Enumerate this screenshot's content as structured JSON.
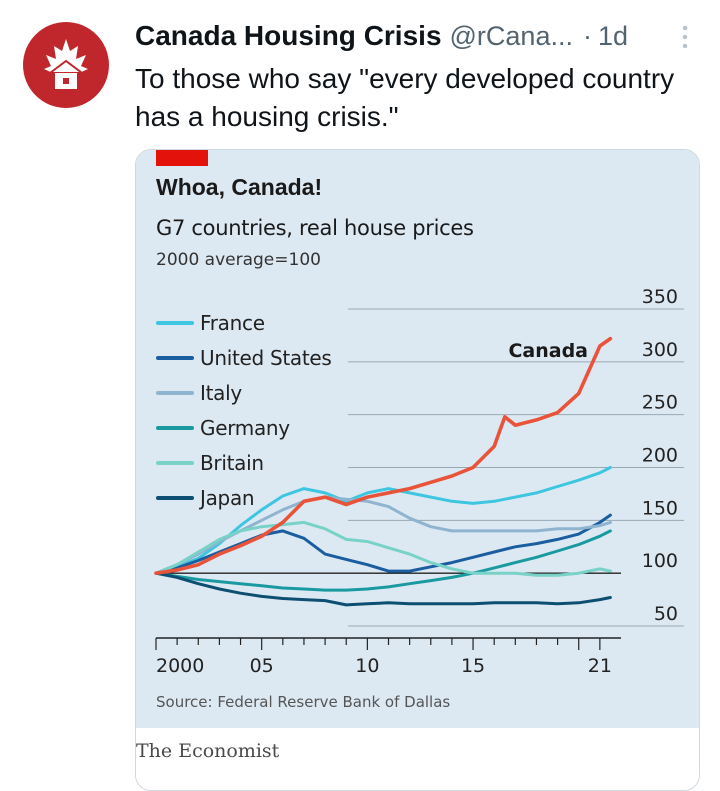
{
  "tweet": {
    "author_name": "Canada Housing Crisis",
    "handle": "@rCana...",
    "separator": "·",
    "time": "1d",
    "text": "To those who say \"every developed country has a housing crisis.\""
  },
  "colors": {
    "avatar_bg": "#c0272d",
    "canada": "#e8533a",
    "france": "#3ec6e0",
    "united_states": "#1a5ea0",
    "italy": "#8fb4d0",
    "germany": "#1a9aa0",
    "britain": "#78d2c8",
    "japan": "#0d4f72"
  },
  "card": {
    "publisher": "The Economist",
    "source": "Source: Federal Reserve Bank of Dallas"
  },
  "chart_data": {
    "type": "line",
    "title": "Whoa, Canada!",
    "subtitle": "G7 countries, real house prices",
    "note": "2000 average=100",
    "annotation": "Canada",
    "xlabel": "",
    "ylabel": "",
    "x_ticks": [
      "2000",
      "05",
      "10",
      "15",
      "21"
    ],
    "x_range": [
      2000,
      2022
    ],
    "y_ticks": [
      50,
      100,
      150,
      200,
      250,
      300,
      350
    ],
    "ylim": [
      50,
      350
    ],
    "series": [
      {
        "name": "Canada",
        "key": "canada",
        "legend": false,
        "x": [
          2000,
          2001,
          2002,
          2003,
          2004,
          2005,
          2006,
          2007,
          2008,
          2009,
          2010,
          2011,
          2012,
          2013,
          2014,
          2015,
          2016,
          2016.5,
          2017,
          2018,
          2019,
          2020,
          2021,
          2021.5
        ],
        "values": [
          100,
          103,
          108,
          118,
          126,
          135,
          148,
          168,
          172,
          165,
          172,
          176,
          180,
          186,
          192,
          200,
          220,
          248,
          240,
          245,
          252,
          270,
          315,
          322
        ]
      },
      {
        "name": "France",
        "key": "france",
        "legend": true,
        "x": [
          2000,
          2001,
          2002,
          2003,
          2004,
          2005,
          2006,
          2007,
          2008,
          2009,
          2010,
          2011,
          2012,
          2013,
          2014,
          2015,
          2016,
          2017,
          2018,
          2019,
          2020,
          2021,
          2021.5
        ],
        "values": [
          100,
          106,
          114,
          128,
          145,
          160,
          173,
          180,
          176,
          168,
          176,
          180,
          176,
          172,
          168,
          166,
          168,
          172,
          176,
          182,
          188,
          195,
          200
        ]
      },
      {
        "name": "United States",
        "key": "united_states",
        "legend": true,
        "x": [
          2000,
          2001,
          2002,
          2003,
          2004,
          2005,
          2006,
          2007,
          2008,
          2009,
          2010,
          2011,
          2012,
          2013,
          2014,
          2015,
          2016,
          2017,
          2018,
          2019,
          2020,
          2021,
          2021.5
        ],
        "values": [
          100,
          105,
          112,
          120,
          128,
          136,
          140,
          133,
          118,
          113,
          108,
          102,
          102,
          106,
          110,
          115,
          120,
          125,
          128,
          132,
          137,
          148,
          155
        ]
      },
      {
        "name": "Italy",
        "key": "italy",
        "legend": true,
        "x": [
          2000,
          2001,
          2002,
          2003,
          2004,
          2005,
          2006,
          2007,
          2008,
          2009,
          2010,
          2011,
          2012,
          2013,
          2014,
          2015,
          2016,
          2017,
          2018,
          2019,
          2020,
          2021,
          2021.5
        ],
        "values": [
          100,
          108,
          118,
          130,
          140,
          150,
          160,
          168,
          172,
          170,
          168,
          163,
          152,
          144,
          140,
          140,
          140,
          140,
          140,
          142,
          142,
          145,
          148
        ]
      },
      {
        "name": "Germany",
        "key": "germany",
        "legend": true,
        "x": [
          2000,
          2001,
          2002,
          2003,
          2004,
          2005,
          2006,
          2007,
          2008,
          2009,
          2010,
          2011,
          2012,
          2013,
          2014,
          2015,
          2016,
          2017,
          2018,
          2019,
          2020,
          2021,
          2021.5
        ],
        "values": [
          100,
          97,
          94,
          92,
          90,
          88,
          86,
          85,
          84,
          84,
          85,
          87,
          90,
          93,
          96,
          100,
          105,
          110,
          115,
          121,
          127,
          135,
          140
        ]
      },
      {
        "name": "Britain",
        "key": "britain",
        "legend": true,
        "x": [
          2000,
          2001,
          2002,
          2003,
          2004,
          2005,
          2006,
          2007,
          2008,
          2009,
          2010,
          2011,
          2012,
          2013,
          2014,
          2015,
          2016,
          2017,
          2018,
          2019,
          2020,
          2021,
          2021.5
        ],
        "values": [
          100,
          108,
          120,
          132,
          140,
          144,
          146,
          148,
          142,
          132,
          130,
          124,
          118,
          110,
          104,
          100,
          100,
          100,
          98,
          98,
          100,
          104,
          102
        ]
      },
      {
        "name": "Japan",
        "key": "japan",
        "legend": true,
        "x": [
          2000,
          2001,
          2002,
          2003,
          2004,
          2005,
          2006,
          2007,
          2008,
          2009,
          2010,
          2011,
          2012,
          2013,
          2014,
          2015,
          2016,
          2017,
          2018,
          2019,
          2020,
          2021,
          2021.5
        ],
        "values": [
          100,
          96,
          90,
          85,
          81,
          78,
          76,
          75,
          74,
          70,
          71,
          72,
          71,
          71,
          71,
          71,
          72,
          72,
          72,
          71,
          72,
          75,
          77
        ]
      }
    ]
  }
}
